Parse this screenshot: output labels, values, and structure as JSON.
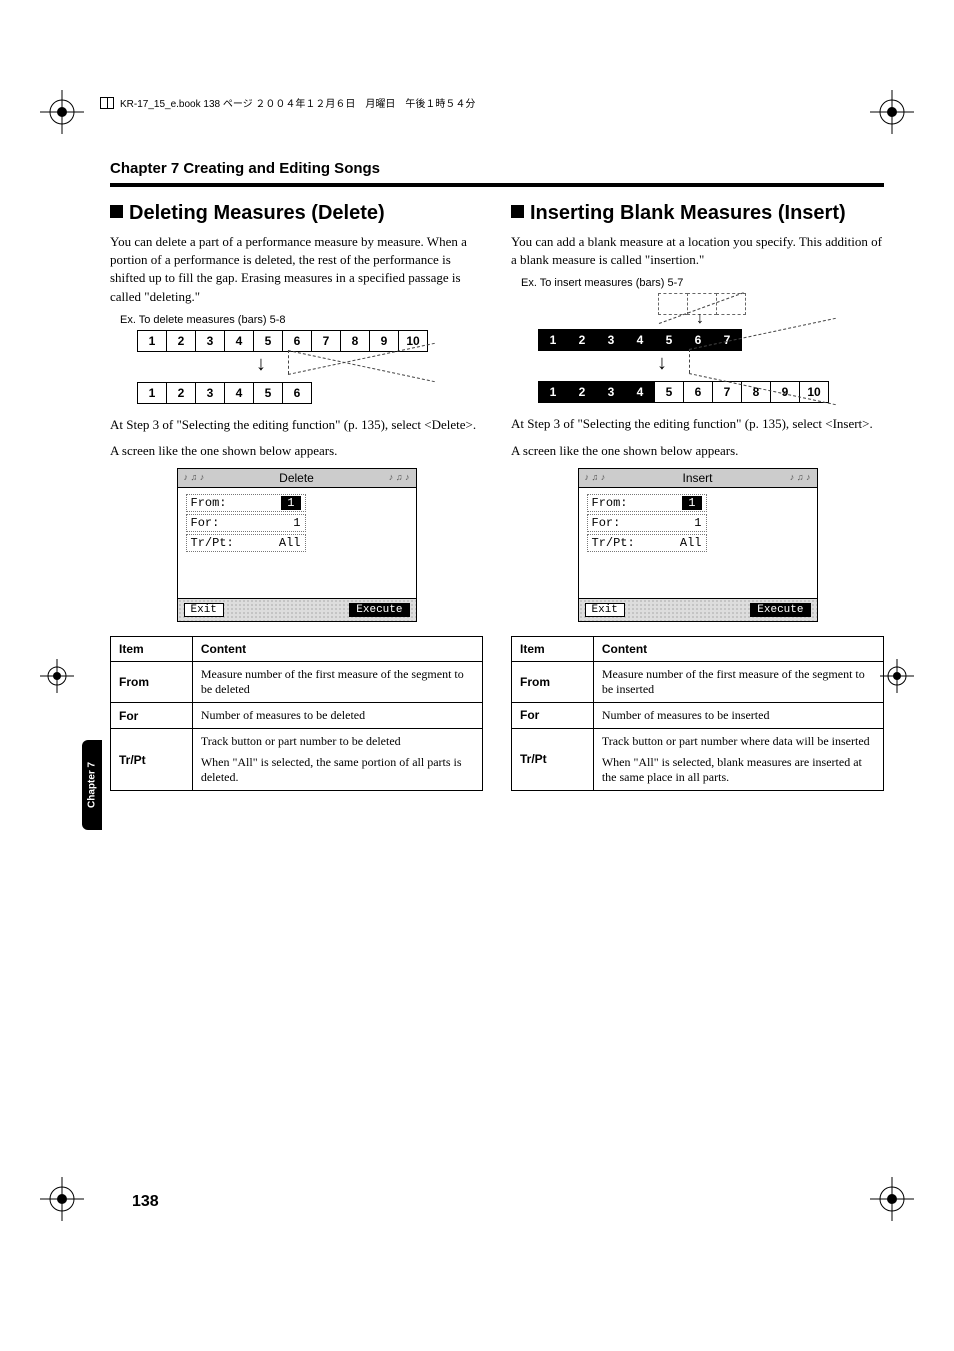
{
  "header_runner": "KR-17_15_e.book  138 ページ  ２００４年１２月６日　月曜日　午後１時５４分",
  "chapter_title": "Chapter 7 Creating and Editing Songs",
  "side_tab": "Chapter 7",
  "page_number": "138",
  "left": {
    "heading": "Deleting Measures (Delete)",
    "intro": "You can delete a part of a performance measure by measure. When a portion of a performance is deleted, the rest of the performance is shifted up to fill the gap. Erasing measures in a specified passage is called \"deleting.\"",
    "example_label": "Ex. To delete measures (bars) 5-8",
    "diagram": {
      "row_before": [
        "1",
        "2",
        "3",
        "4",
        "5",
        "6",
        "7",
        "8",
        "9",
        "10"
      ],
      "row_after": [
        "1",
        "2",
        "3",
        "4",
        "5",
        "6"
      ]
    },
    "step_text": "At Step 3 of \"Selecting the editing function\" (p. 135), select <Delete>.",
    "screen_caption": "A screen like the one shown below appears.",
    "lcd": {
      "title": "Delete",
      "rows": [
        {
          "label": "From:",
          "value": "1",
          "highlighted": true
        },
        {
          "label": "For:",
          "value": "1",
          "highlighted": false
        },
        {
          "label": "Tr/Pt:",
          "value": "All",
          "highlighted": false
        }
      ],
      "footer_left": "Exit",
      "footer_right": "Execute"
    },
    "table": {
      "head_item": "Item",
      "head_content": "Content",
      "rows": [
        {
          "item": "From",
          "content": [
            "Measure number of the first measure of the segment to be deleted"
          ]
        },
        {
          "item": "For",
          "content": [
            "Number of measures to be deleted"
          ]
        },
        {
          "item": "Tr/Pt",
          "content": [
            "Track button or part number to be deleted",
            "When \"All\" is selected, the same portion of all parts is deleted."
          ]
        }
      ]
    }
  },
  "right": {
    "heading": "Inserting Blank Measures (Insert)",
    "intro": "You can add a blank measure at a location you specify. This addition of a blank measure is called \"insertion.\"",
    "example_label": "Ex. To insert measures (bars) 5-7",
    "diagram": {
      "row_before": [
        "1",
        "2",
        "3",
        "4",
        "5",
        "6",
        "7"
      ],
      "row_ghost_count": 3,
      "row_after": [
        "1",
        "2",
        "3",
        "4",
        "5",
        "6",
        "7",
        "8",
        "9",
        "10"
      ],
      "after_plain_from_index": 4
    },
    "step_text": "At Step 3 of \"Selecting the editing function\" (p. 135), select <Insert>.",
    "screen_caption": "A screen like the one shown below appears.",
    "lcd": {
      "title": "Insert",
      "rows": [
        {
          "label": "From:",
          "value": "1",
          "highlighted": true
        },
        {
          "label": "For:",
          "value": "1",
          "highlighted": false
        },
        {
          "label": "Tr/Pt:",
          "value": "All",
          "highlighted": false
        }
      ],
      "footer_left": "Exit",
      "footer_right": "Execute"
    },
    "table": {
      "head_item": "Item",
      "head_content": "Content",
      "rows": [
        {
          "item": "From",
          "content": [
            "Measure number of the first measure of the segment to be inserted"
          ]
        },
        {
          "item": "For",
          "content": [
            "Number of measures to be inserted"
          ]
        },
        {
          "item": "Tr/Pt",
          "content": [
            "Track button or part number where data will be inserted",
            "When \"All\" is selected, blank measures are inserted at the same place in all parts."
          ]
        }
      ]
    }
  }
}
